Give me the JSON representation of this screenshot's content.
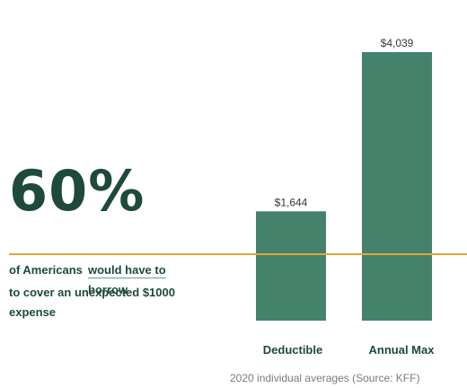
{
  "stat": {
    "value": "60%",
    "caption_part1": "of Americans",
    "caption_link_a": "would have to",
    "caption_link_b": "borrow",
    "caption_line2": "to cover an unexpected $1000",
    "caption_line3": "expense"
  },
  "colors": {
    "bar": "#44826b",
    "reference_line": "#e3a63a",
    "text_dark": "#1f4a3a",
    "source_text": "#7a7a7a"
  },
  "chart_data": {
    "type": "bar",
    "categories": [
      "Deductible",
      "Annual Max"
    ],
    "values": [
      1644,
      4039
    ],
    "data_labels": [
      "$1,644",
      "$4,039"
    ],
    "title": "",
    "xlabel": "",
    "ylabel": "",
    "ylim": [
      0,
      4039
    ],
    "reference_line_value": 1000,
    "grid": false,
    "legend": "none",
    "source": "2020 individual averages (Source: KFF)"
  }
}
